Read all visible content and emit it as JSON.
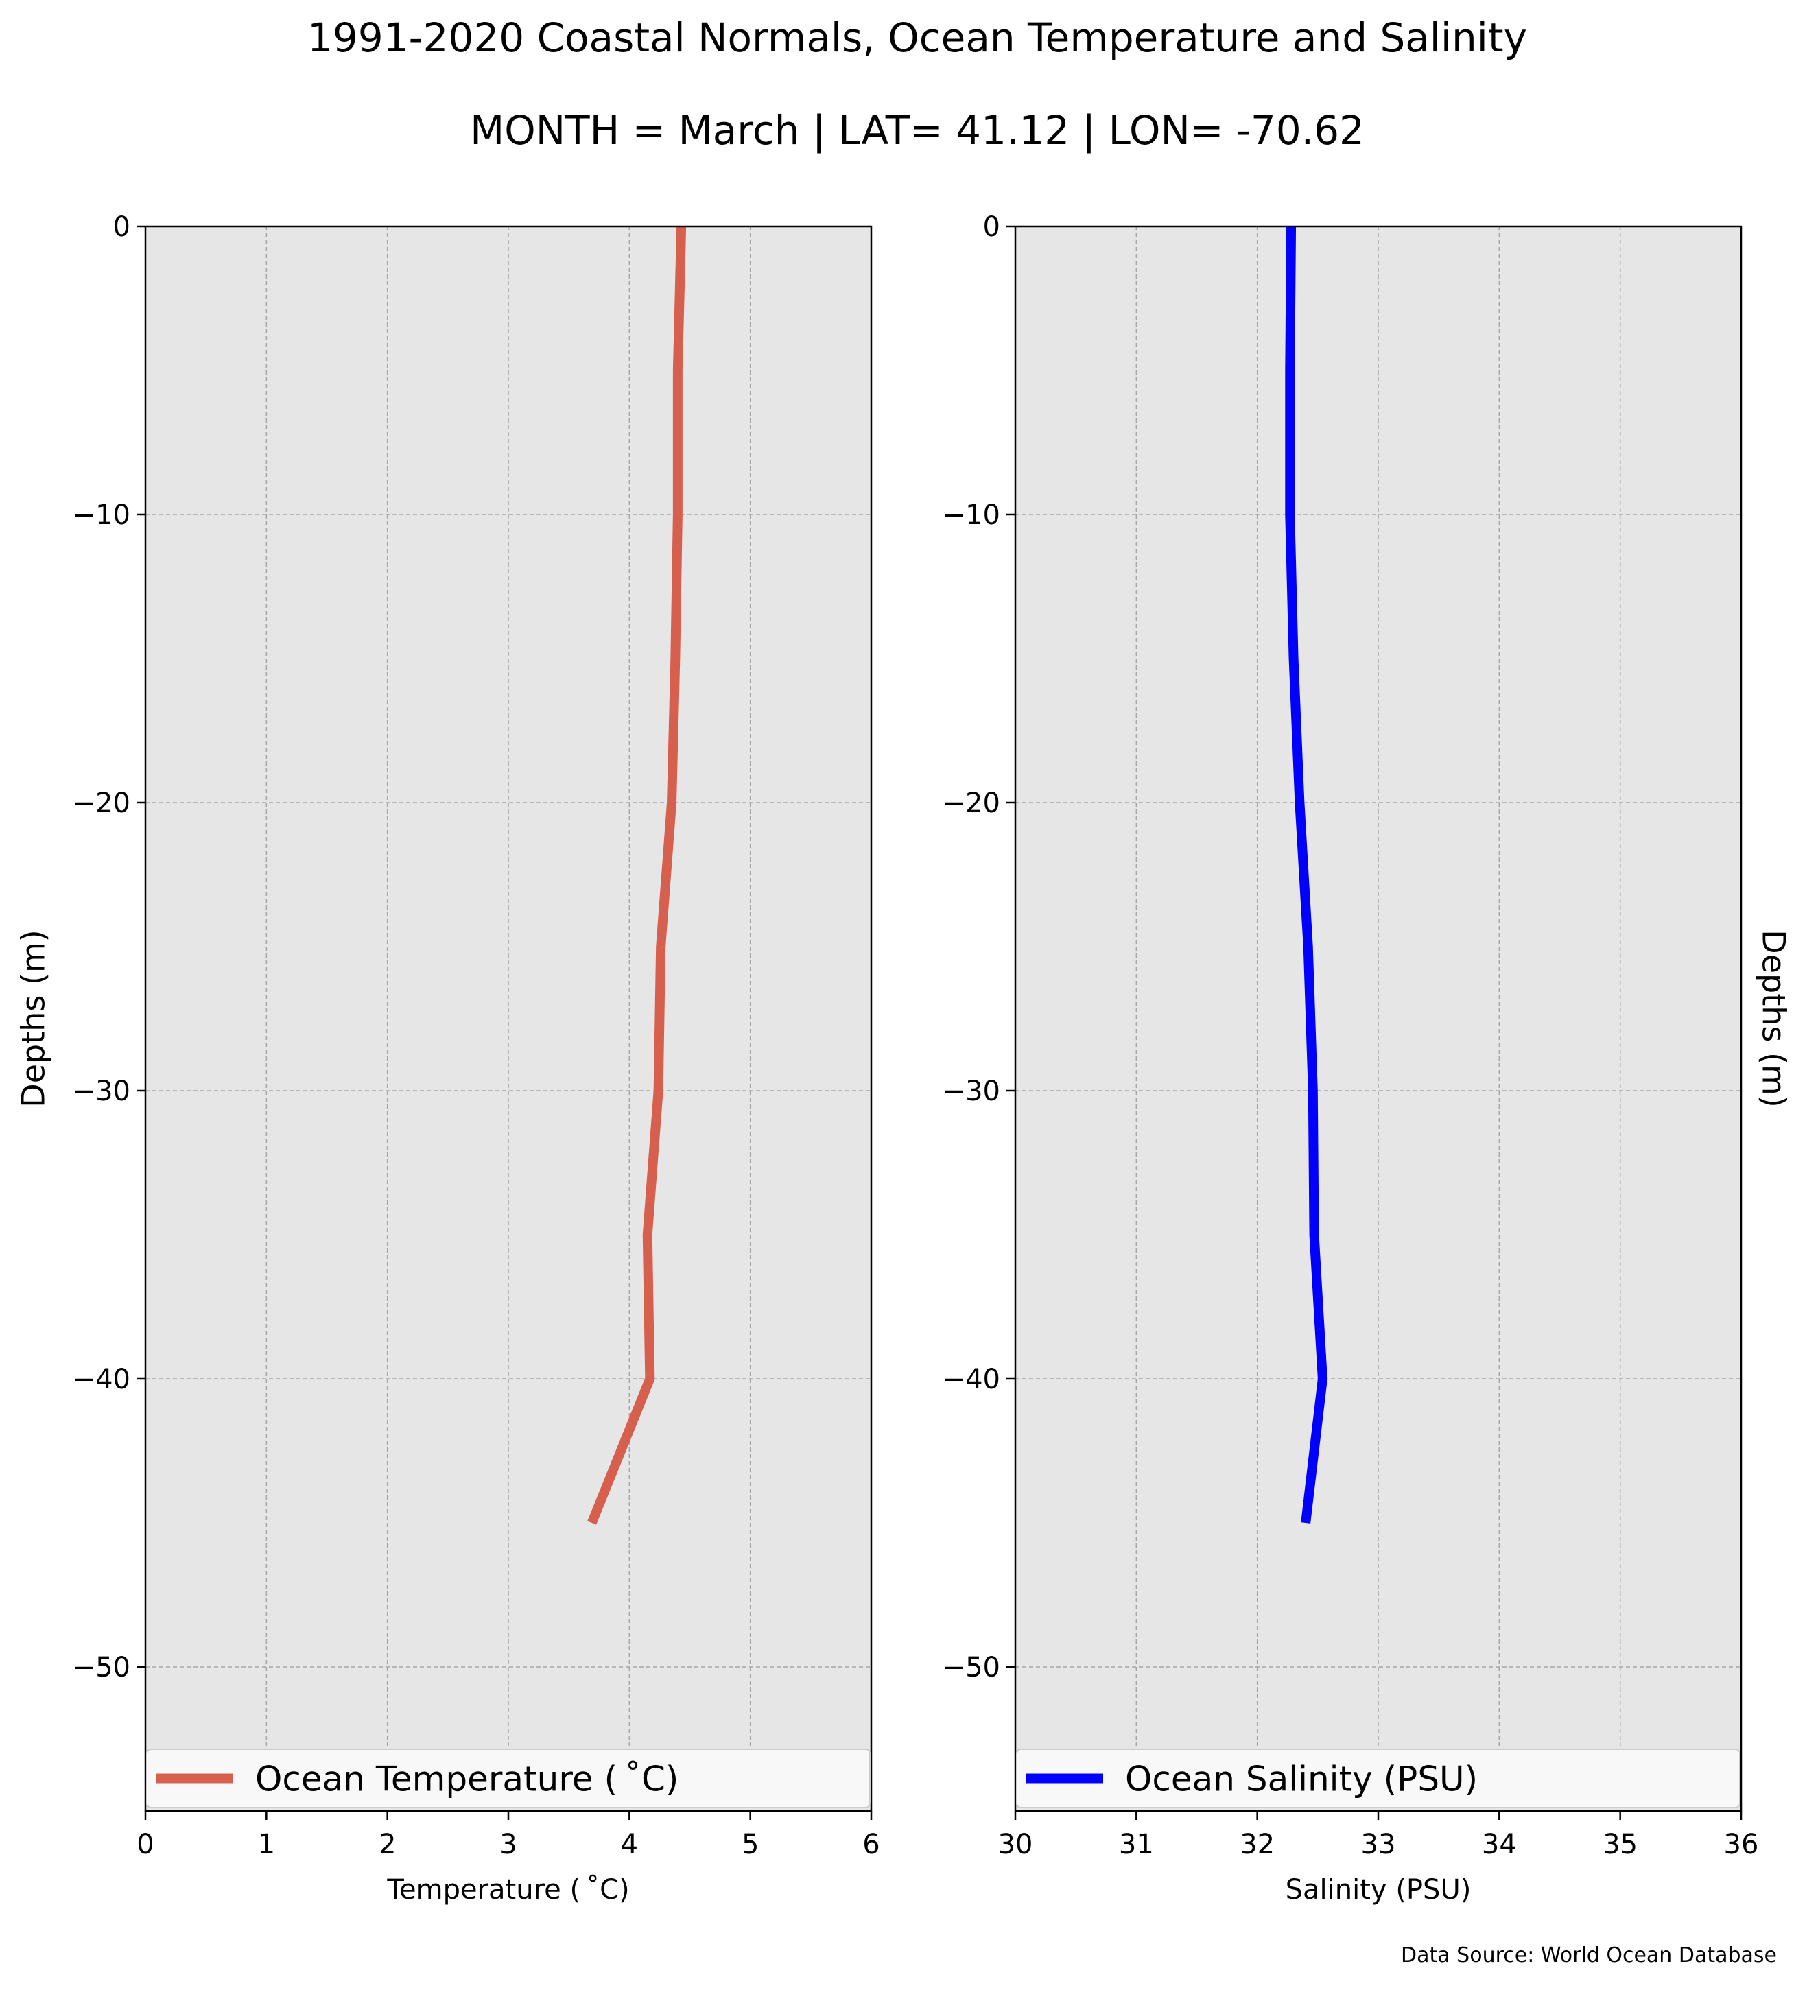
{
  "figure": {
    "title": "1991-2020 Coastal Normals, Ocean Temperature and Salinity",
    "subtitle": "MONTH = March | LAT= 41.12 | LON= -70.62",
    "source": "Data Source: World Ocean Database",
    "background": "#ffffff",
    "panel_background": "#e6e6e6",
    "grid_color": "#a6a6a6"
  },
  "chart_data": [
    {
      "type": "line",
      "xlabel": "Temperature ($^\\circ$C)",
      "xlabel_display": "Temperature ( ˚C)",
      "ylabel": "Depths (m)",
      "xlim": [
        0,
        6
      ],
      "ylim": [
        -55,
        0
      ],
      "xticks": [
        0,
        1,
        2,
        3,
        4,
        5,
        6
      ],
      "yticks": [
        0,
        -10,
        -20,
        -30,
        -40,
        -50
      ],
      "grid": true,
      "legend_placement": "bottom",
      "series": [
        {
          "name": "Ocean Temperature ( ˚C)",
          "color": "#d6604d",
          "depth": [
            0,
            -5,
            -10,
            -15,
            -20,
            -25,
            -30,
            -35,
            -40,
            -45
          ],
          "values": [
            4.43,
            4.4,
            4.4,
            4.38,
            4.35,
            4.26,
            4.24,
            4.15,
            4.17,
            3.69
          ]
        }
      ]
    },
    {
      "type": "line",
      "xlabel": "Salinity (PSU)",
      "xlabel_display": "Salinity (PSU)",
      "ylabel": "Depths (m)",
      "xlim": [
        30,
        36
      ],
      "ylim": [
        -55,
        0
      ],
      "xticks": [
        30,
        31,
        32,
        33,
        34,
        35,
        36
      ],
      "yticks": [
        0,
        -10,
        -20,
        -30,
        -40,
        -50
      ],
      "grid": true,
      "legend_placement": "bottom",
      "series": [
        {
          "name": "Ocean Salinity (PSU)",
          "color": "#0000ff",
          "depth": [
            0,
            -5,
            -10,
            -15,
            -20,
            -25,
            -30,
            -35,
            -40,
            -45
          ],
          "values": [
            32.28,
            32.27,
            32.27,
            32.3,
            32.35,
            32.42,
            32.46,
            32.47,
            32.54,
            32.4
          ]
        }
      ]
    }
  ]
}
